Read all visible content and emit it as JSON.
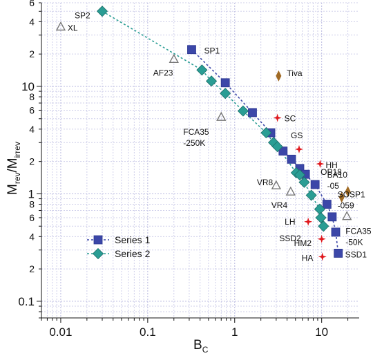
{
  "chart_data": {
    "type": "scatter",
    "xscale": "log",
    "yscale": "log",
    "xlim": [
      0.006,
      27
    ],
    "ylim": [
      0.07,
      60
    ],
    "grid": true,
    "legend_position": "lower-left",
    "xlabel": {
      "main": "B",
      "sub": "C"
    },
    "ylabel": {
      "num": "M",
      "num_sub": "rev",
      "den": "M",
      "den_sub": "irrev"
    },
    "x_major_ticks": [
      {
        "value": 0.01,
        "label": "0.01"
      },
      {
        "value": 0.1,
        "label": "0.1"
      },
      {
        "value": 1,
        "label": "1"
      },
      {
        "value": 10,
        "label": "10"
      }
    ],
    "y_major_ticks": [
      {
        "value": 0.1,
        "label": "0.1"
      },
      {
        "value": 1,
        "label": "1"
      },
      {
        "value": 10,
        "label": "10"
      }
    ],
    "y_minor_labels": [
      {
        "value": 2,
        "label": "2"
      },
      {
        "value": 4,
        "label": "4"
      },
      {
        "value": 6,
        "label": "6"
      },
      {
        "value": 8,
        "label": "8"
      },
      {
        "value": 20,
        "label": "2"
      },
      {
        "value": 40,
        "label": "4"
      },
      {
        "value": 60,
        "label": "6"
      },
      {
        "value": 0.2,
        "label": "2"
      },
      {
        "value": 0.4,
        "label": "4"
      },
      {
        "value": 0.6,
        "label": "6"
      },
      {
        "value": 0.8,
        "label": "8"
      }
    ],
    "series": [
      {
        "name": "Series 1",
        "marker": "square",
        "color": "#3c47a8",
        "line_color": "#3c47a8",
        "points": [
          {
            "x": 0.32,
            "y": 22
          },
          {
            "x": 0.78,
            "y": 10.8
          },
          {
            "x": 1.6,
            "y": 5.7
          },
          {
            "x": 2.6,
            "y": 3.7
          },
          {
            "x": 3.6,
            "y": 2.5
          },
          {
            "x": 4.5,
            "y": 2.1
          },
          {
            "x": 5.6,
            "y": 1.72
          },
          {
            "x": 6.5,
            "y": 1.52
          },
          {
            "x": 8.4,
            "y": 1.22
          },
          {
            "x": 11.5,
            "y": 0.8
          },
          {
            "x": 13.2,
            "y": 0.61
          },
          {
            "x": 14.5,
            "y": 0.44
          },
          {
            "x": 15.5,
            "y": 0.28
          }
        ]
      },
      {
        "name": "Series 2",
        "marker": "diamond",
        "color": "#2a9d94",
        "line_color": "#2a9d94",
        "points": [
          {
            "x": 0.03,
            "y": 50
          },
          {
            "x": 0.42,
            "y": 14.2
          },
          {
            "x": 0.54,
            "y": 11.2
          },
          {
            "x": 0.78,
            "y": 8.6
          },
          {
            "x": 1.25,
            "y": 5.9
          },
          {
            "x": 2.3,
            "y": 3.7
          },
          {
            "x": 2.8,
            "y": 3.0
          },
          {
            "x": 3.1,
            "y": 2.75
          },
          {
            "x": 5.1,
            "y": 1.57
          },
          {
            "x": 5.6,
            "y": 1.5
          },
          {
            "x": 6.3,
            "y": 1.28
          },
          {
            "x": 7.6,
            "y": 0.97
          },
          {
            "x": 9.5,
            "y": 0.72
          },
          {
            "x": 9.8,
            "y": 0.6
          },
          {
            "x": 10.5,
            "y": 0.5
          }
        ]
      }
    ],
    "other_points": [
      {
        "label": "XL",
        "x": 0.01,
        "y": 36,
        "marker": "triangle-open",
        "color": "#777777"
      },
      {
        "label": "AF23",
        "x": 0.2,
        "y": 18,
        "marker": "triangle-open",
        "color": "#777777"
      },
      {
        "label": "FCA35 -250K",
        "x": 0.7,
        "y": 5.2,
        "marker": "triangle-open",
        "color": "#777777"
      },
      {
        "label": "VR8",
        "x": 3.0,
        "y": 1.2,
        "marker": "triangle-open",
        "color": "#777777"
      },
      {
        "label": "VR4",
        "x": 4.4,
        "y": 1.05,
        "marker": "triangle-open",
        "color": "#777777"
      },
      {
        "label": "FCA35 -50K",
        "x": 19.5,
        "y": 0.62,
        "marker": "triangle-open",
        "color": "#777777"
      },
      {
        "label": "Tiva",
        "x": 3.2,
        "y": 12.5,
        "marker": "diamond-thin",
        "color": "#a06a24"
      },
      {
        "label": "BA10 -05",
        "x": 20.0,
        "y": 1.05,
        "marker": "diamond-thin",
        "color": "#a06a24"
      },
      {
        "label": "SOSP1 -059",
        "x": 17.0,
        "y": 0.93,
        "marker": "diamond-thin",
        "color": "#a06a24"
      },
      {
        "label": "SC",
        "x": 3.1,
        "y": 5.1,
        "marker": "star",
        "color": "#e0181d"
      },
      {
        "label": "GS",
        "x": 5.5,
        "y": 2.6,
        "marker": "star",
        "color": "#e0181d"
      },
      {
        "label": "HH",
        "x": 9.6,
        "y": 1.9,
        "marker": "star",
        "color": "#e0181d"
      },
      {
        "label": "LH",
        "x": 7.0,
        "y": 0.55,
        "marker": "star",
        "color": "#e0181d"
      },
      {
        "label": "HM2",
        "x": 10.0,
        "y": 0.38,
        "marker": "star",
        "color": "#e0181d"
      },
      {
        "label": "HA",
        "x": 10.2,
        "y": 0.26,
        "marker": "star",
        "color": "#e0181d"
      }
    ],
    "annotations": [
      {
        "text": "SP2",
        "for": "Series 2",
        "x": 0.03,
        "y": 50
      },
      {
        "text": "SP1",
        "for": "Series 1",
        "x": 0.32,
        "y": 22
      },
      {
        "text": "OP18",
        "x": 8.4,
        "y": 1.22
      },
      {
        "text": "SSD2",
        "x": 10.5,
        "y": 0.5
      },
      {
        "text": "SSD1",
        "x": 15.5,
        "y": 0.28
      }
    ]
  }
}
